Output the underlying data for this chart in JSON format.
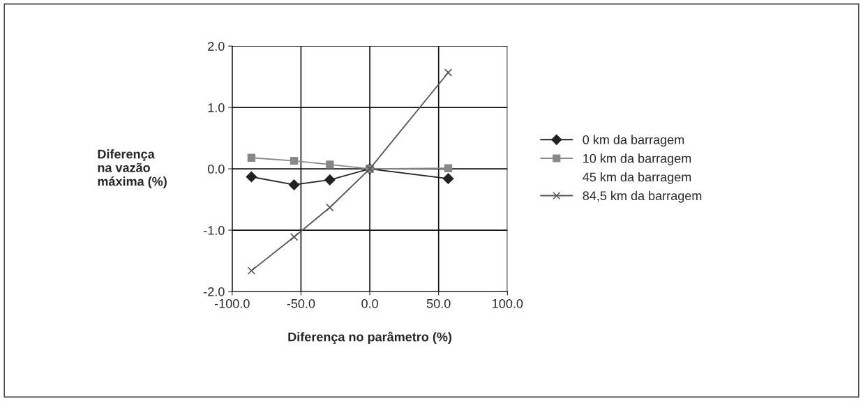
{
  "chart_data": {
    "type": "line",
    "xlabel": "Diferença no parâmetro (%)",
    "ylabel": "Diferença\nna vazão\nmáxima (%)",
    "x": [
      -86,
      -55,
      -29,
      0,
      57
    ],
    "series": [
      {
        "name": "0 km da barragem",
        "color": "#222222",
        "marker": "diamond",
        "values": [
          -0.13,
          -0.26,
          -0.18,
          0,
          -0.16
        ]
      },
      {
        "name": "10 km da barragem",
        "color": "#888888",
        "marker": "square",
        "values": [
          0.18,
          0.13,
          0.07,
          0,
          0.01
        ]
      },
      {
        "name": "45 km da barragem",
        "marker": "none",
        "values": [
          null,
          null,
          null,
          null,
          null
        ]
      },
      {
        "name": "84,5 km da barragem",
        "color": "#555555",
        "marker": "cross",
        "values": [
          -1.66,
          -1.11,
          -0.63,
          0,
          1.57
        ]
      }
    ],
    "xlim": [
      -100,
      100
    ],
    "xticks": [
      {
        "value": -100,
        "label": "-100.0"
      },
      {
        "value": -50,
        "label": "-50.0"
      },
      {
        "value": 0,
        "label": "0.0"
      },
      {
        "value": 50,
        "label": "50.0"
      },
      {
        "value": 100,
        "label": "100.0"
      }
    ],
    "ylim": [
      -2,
      2
    ],
    "yticks": [
      {
        "value": -2,
        "label": "-2.0"
      },
      {
        "value": -1,
        "label": "-1.0"
      },
      {
        "value": 0,
        "label": "0.0"
      },
      {
        "value": 1,
        "label": "1.0"
      },
      {
        "value": 2,
        "label": "2.0"
      }
    ],
    "grid": true,
    "legend": "right"
  }
}
